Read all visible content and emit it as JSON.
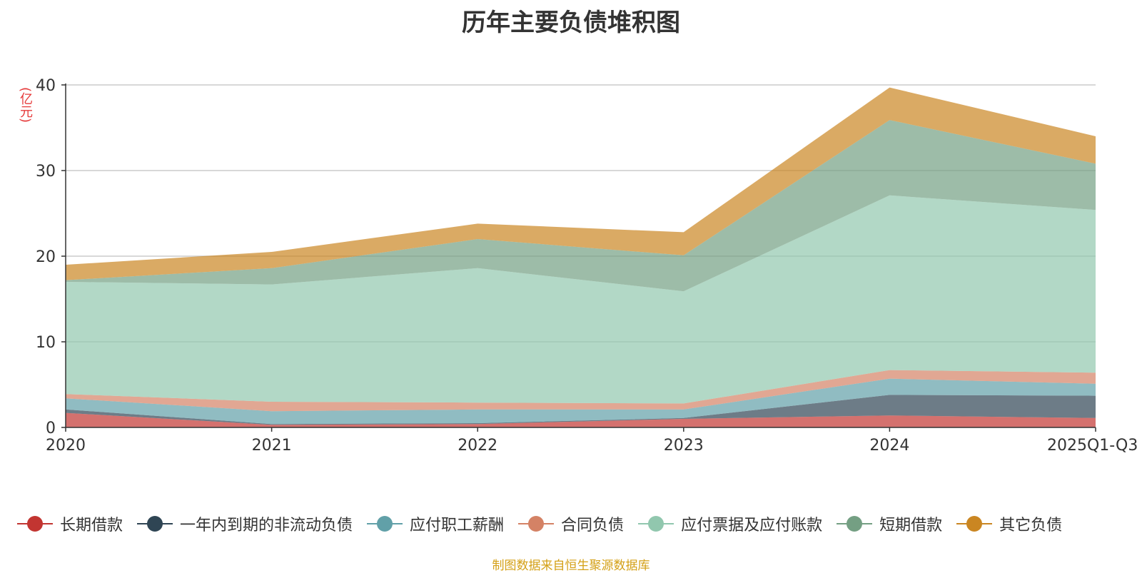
{
  "chart_data": {
    "type": "area",
    "stacked": true,
    "title": "历年主要负债堆积图",
    "ylabel": "(亿元)",
    "xlabel": "",
    "x": [
      "2020",
      "2021",
      "2022",
      "2023",
      "2024",
      "2025Q1-Q3"
    ],
    "ylim": [
      0,
      40
    ],
    "yticks": [
      0,
      10,
      20,
      30,
      40
    ],
    "grid": true,
    "legend_position": "bottom",
    "series": [
      {
        "name": "长期借款",
        "color": "#c23531",
        "values": [
          1.7,
          0.3,
          0.4,
          1.0,
          1.4,
          1.1
        ]
      },
      {
        "name": "一年内到期的非流动负债",
        "color": "#2f4554",
        "values": [
          0.4,
          0.1,
          0.1,
          0.1,
          2.4,
          2.6
        ]
      },
      {
        "name": "应付职工薪酬",
        "color": "#61a0a8",
        "values": [
          1.3,
          1.5,
          1.6,
          1.0,
          1.9,
          1.4
        ]
      },
      {
        "name": "合同负债",
        "color": "#d48265",
        "values": [
          0.5,
          1.1,
          0.8,
          0.7,
          1.0,
          1.3
        ]
      },
      {
        "name": "应付票据及应付账款",
        "color": "#91c7ae",
        "values": [
          13.1,
          13.7,
          15.7,
          13.1,
          20.4,
          19.0
        ]
      },
      {
        "name": "短期借款",
        "color": "#749f83",
        "values": [
          0.2,
          1.9,
          3.4,
          4.2,
          8.8,
          5.4
        ]
      },
      {
        "name": "其它负债",
        "color": "#ca8622",
        "values": [
          1.8,
          1.9,
          1.8,
          2.7,
          3.8,
          3.2
        ]
      }
    ]
  },
  "source_note": "制图数据来自恒生聚源数据库"
}
